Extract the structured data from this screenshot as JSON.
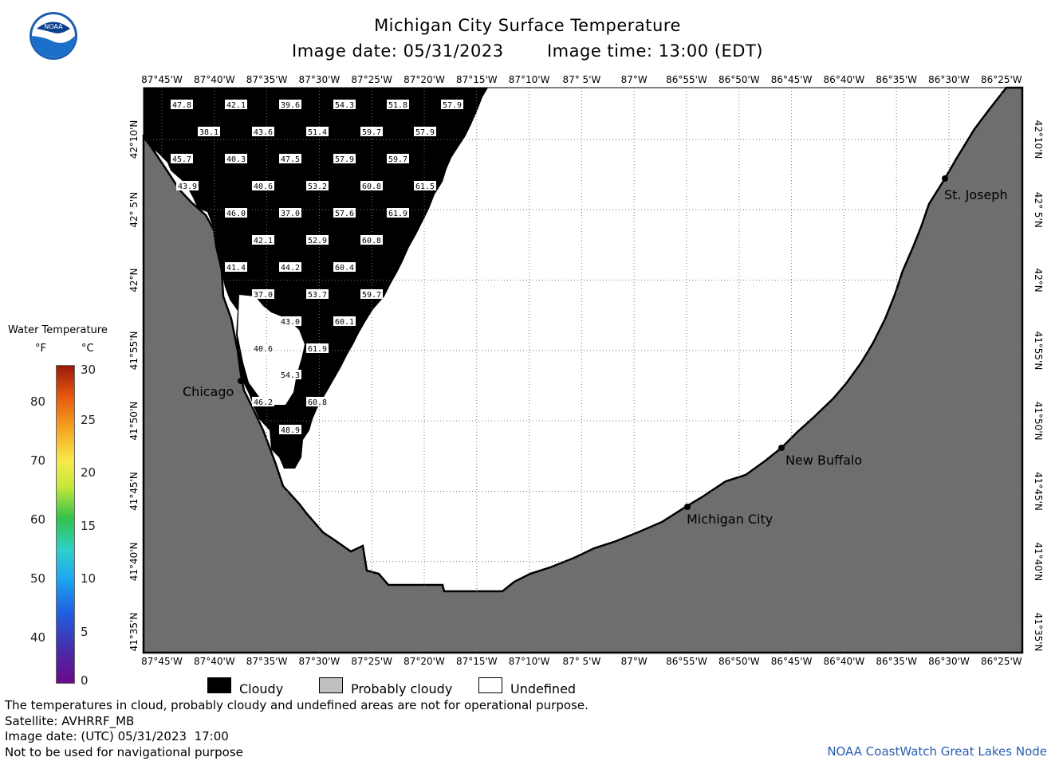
{
  "header": {
    "title": "Michigan City Surface Temperature",
    "date_line": "Image date: 05/31/2023",
    "time_line": "Image time: 13:00 (EDT)"
  },
  "logo": {
    "text": "NOAA"
  },
  "legend": {
    "title": "Water Temperature",
    "f_unit": "°F",
    "c_unit": "°C",
    "f_ticks": [
      "80",
      "70",
      "60",
      "50",
      "40"
    ],
    "c_ticks": [
      "30",
      "25",
      "20",
      "15",
      "10",
      "5",
      "0"
    ]
  },
  "axes": {
    "lon_labels": [
      "87°45'W",
      "87°40'W",
      "87°35'W",
      "87°30'W",
      "87°25'W",
      "87°20'W",
      "87°15'W",
      "87°10'W",
      "87° 5'W",
      "87°W",
      "86°55'W",
      "86°50'W",
      "86°45'W",
      "86°40'W",
      "86°35'W",
      "86°30'W",
      "86°25'W"
    ],
    "lat_labels": [
      "42°10'N",
      "42° 5'N",
      "42°N",
      "41°55'N",
      "41°50'N",
      "41°45'N",
      "41°40'N",
      "41°35'N"
    ]
  },
  "cities": [
    {
      "name": "Chicago"
    },
    {
      "name": "Michigan City"
    },
    {
      "name": "New Buffalo"
    },
    {
      "name": "St. Joseph"
    }
  ],
  "temps": [
    "47.8",
    "42.1",
    "39.6",
    "54.3",
    "51.8",
    "57.9",
    "38.1",
    "43.6",
    "51.4",
    "59.7",
    "57.9",
    "45.7",
    "40.3",
    "47.5",
    "57.9",
    "59.7",
    "43.9",
    "40.6",
    "53.2",
    "60.8",
    "61.5",
    "46.0",
    "37.0",
    "57.6",
    "61.9",
    "42.1",
    "52.9",
    "60.8",
    "41.4",
    "44.2",
    "60.4",
    "37.0",
    "53.7",
    "59.7",
    "43.0",
    "60.1",
    "40.6",
    "61.9",
    "54.3",
    "46.2",
    "60.8",
    "48.9"
  ],
  "key": {
    "cloudy": "Cloudy",
    "probably_cloudy": "Probably cloudy",
    "undefined": "Undefined",
    "colors": {
      "cloudy": "#000000",
      "probably_cloudy": "#c0c0c0",
      "undefined": "#ffffff",
      "land": "#6e6e6e"
    }
  },
  "footer": {
    "note": "The temperatures in cloud, probably cloudy and undefined areas are not for operational purpose.",
    "satellite": "Satellite: AVHRRF_MB",
    "utc": "Image date: (UTC) 05/31/2023  17:00",
    "nav": "Not to be used for navigational purpose",
    "credit": "NOAA CoastWatch Great Lakes Node"
  }
}
